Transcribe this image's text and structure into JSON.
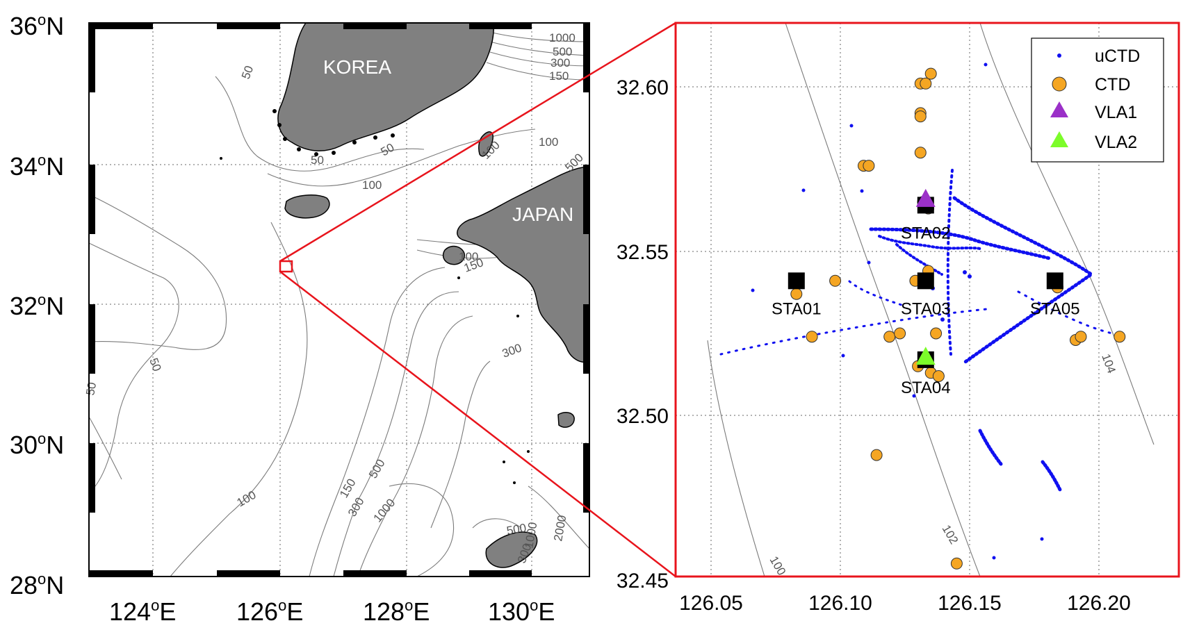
{
  "colors": {
    "land": "#808080",
    "zoom_box": "#e8141c",
    "uctd": "#1010f0",
    "ctd": "#f5a623",
    "vla1": "#9b30c8",
    "vla2": "#7cfc2a",
    "station": "#000000",
    "contour": "#7a7a7a"
  },
  "overview_map": {
    "lat_labels": [
      {
        "deg": "36",
        "suffix": "N"
      },
      {
        "deg": "34",
        "suffix": "N"
      },
      {
        "deg": "32",
        "suffix": "N"
      },
      {
        "deg": "30",
        "suffix": "N"
      },
      {
        "deg": "28",
        "suffix": "N"
      }
    ],
    "lon_labels": [
      {
        "deg": "124",
        "suffix": "E"
      },
      {
        "deg": "126",
        "suffix": "E"
      },
      {
        "deg": "128",
        "suffix": "E"
      },
      {
        "deg": "130",
        "suffix": "E"
      }
    ],
    "land_labels": [
      "KOREA",
      "JAPAN"
    ],
    "contour_labels": [
      "1000",
      "500",
      "300",
      "150",
      "50",
      "50",
      "50",
      "100",
      "100",
      "100",
      "500",
      "100",
      "150",
      "50",
      "50",
      "300",
      "500",
      "150",
      "300",
      "1000",
      "100",
      "500",
      "1000",
      "300",
      "2000"
    ]
  },
  "detail_map": {
    "y_ticks": [
      "32.60",
      "32.55",
      "32.50",
      "32.45"
    ],
    "x_ticks": [
      "126.05",
      "126.10",
      "126.15",
      "126.20"
    ],
    "legend": [
      {
        "label": "uCTD",
        "icon": "blue-dot"
      },
      {
        "label": "CTD",
        "icon": "orange-circle"
      },
      {
        "label": "VLA1",
        "icon": "purple-triangle"
      },
      {
        "label": "VLA2",
        "icon": "green-triangle"
      }
    ],
    "stations": [
      {
        "name": "STA01",
        "lon": 126.083,
        "lat": 32.541
      },
      {
        "name": "STA02",
        "lon": 126.133,
        "lat": 32.564
      },
      {
        "name": "STA03",
        "lon": 126.133,
        "lat": 32.541
      },
      {
        "name": "STA04",
        "lon": 126.133,
        "lat": 32.517
      },
      {
        "name": "STA05",
        "lon": 126.183,
        "lat": 32.541
      }
    ],
    "vla1": {
      "lon": 126.133,
      "lat": 32.566
    },
    "vla2": {
      "lon": 126.133,
      "lat": 32.518
    },
    "contour_labels": [
      "104",
      "102",
      "100"
    ],
    "ctd_points": [
      [
        126.131,
        32.601
      ],
      [
        126.133,
        32.601
      ],
      [
        126.135,
        32.604
      ],
      [
        126.131,
        32.592
      ],
      [
        126.131,
        32.591
      ],
      [
        126.131,
        32.58
      ],
      [
        126.109,
        32.576
      ],
      [
        126.111,
        32.576
      ],
      [
        126.132,
        32.565
      ],
      [
        126.134,
        32.563
      ],
      [
        126.098,
        32.541
      ],
      [
        126.083,
        32.537
      ],
      [
        126.129,
        32.541
      ],
      [
        126.134,
        32.544
      ],
      [
        126.089,
        32.524
      ],
      [
        126.119,
        32.524
      ],
      [
        126.123,
        32.525
      ],
      [
        126.137,
        32.525
      ],
      [
        126.13,
        32.515
      ],
      [
        126.135,
        32.513
      ],
      [
        126.138,
        32.512
      ],
      [
        126.184,
        32.539
      ],
      [
        126.191,
        32.523
      ],
      [
        126.193,
        32.524
      ],
      [
        126.208,
        32.524
      ],
      [
        126.114,
        32.488
      ],
      [
        126.145,
        32.455
      ]
    ]
  }
}
